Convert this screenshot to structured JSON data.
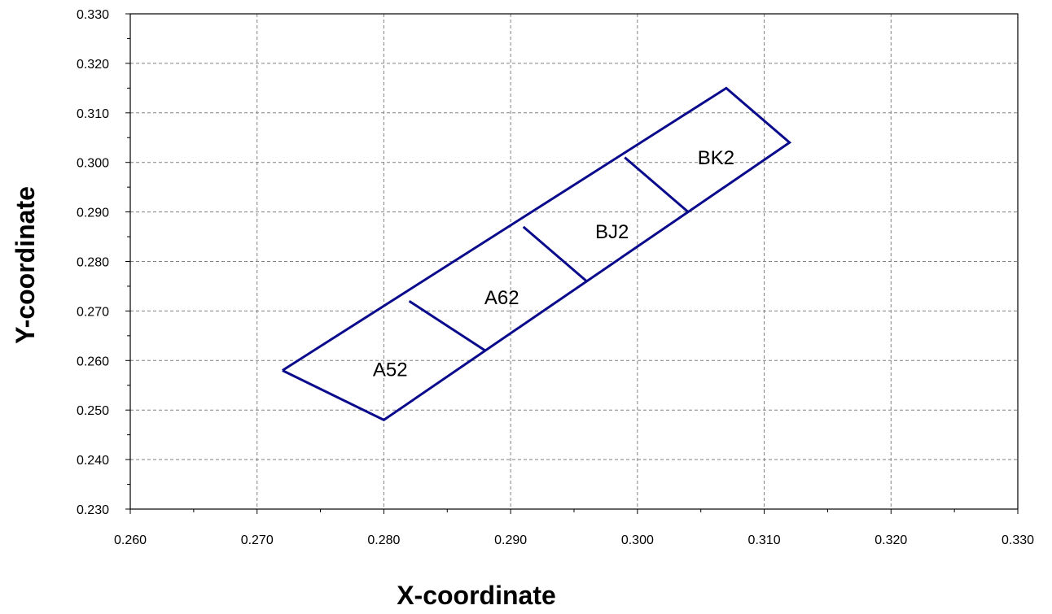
{
  "chart_data": {
    "type": "scatter",
    "xlabel": "X-coordinate",
    "ylabel": "Y-coordinate",
    "xlim": [
      0.26,
      0.33
    ],
    "ylim": [
      0.23,
      0.33
    ],
    "x_ticks": [
      "0.260",
      "0.270",
      "0.280",
      "0.290",
      "0.300",
      "0.310",
      "0.320",
      "0.330"
    ],
    "y_ticks": [
      "0.330",
      "0.320",
      "0.310",
      "0.300",
      "0.290",
      "0.280",
      "0.270",
      "0.260",
      "0.250",
      "0.240",
      "0.230"
    ],
    "grid": true,
    "line_color": "#0a0a8c",
    "outline": [
      [
        0.272,
        0.258
      ],
      [
        0.28,
        0.248
      ],
      [
        0.312,
        0.304
      ],
      [
        0.307,
        0.315
      ],
      [
        0.272,
        0.258
      ]
    ],
    "dividers": [
      [
        [
          0.282,
          0.272
        ],
        [
          0.288,
          0.262
        ]
      ],
      [
        [
          0.291,
          0.287
        ],
        [
          0.296,
          0.276
        ]
      ],
      [
        [
          0.299,
          0.301
        ],
        [
          0.304,
          0.29
        ]
      ]
    ],
    "bins": [
      {
        "label": "A52",
        "x": 0.2805,
        "y": 0.2582
      },
      {
        "label": "A62",
        "x": 0.2893,
        "y": 0.2727
      },
      {
        "label": "BJ2",
        "x": 0.298,
        "y": 0.286
      },
      {
        "label": "BK2",
        "x": 0.3062,
        "y": 0.3009
      }
    ]
  }
}
